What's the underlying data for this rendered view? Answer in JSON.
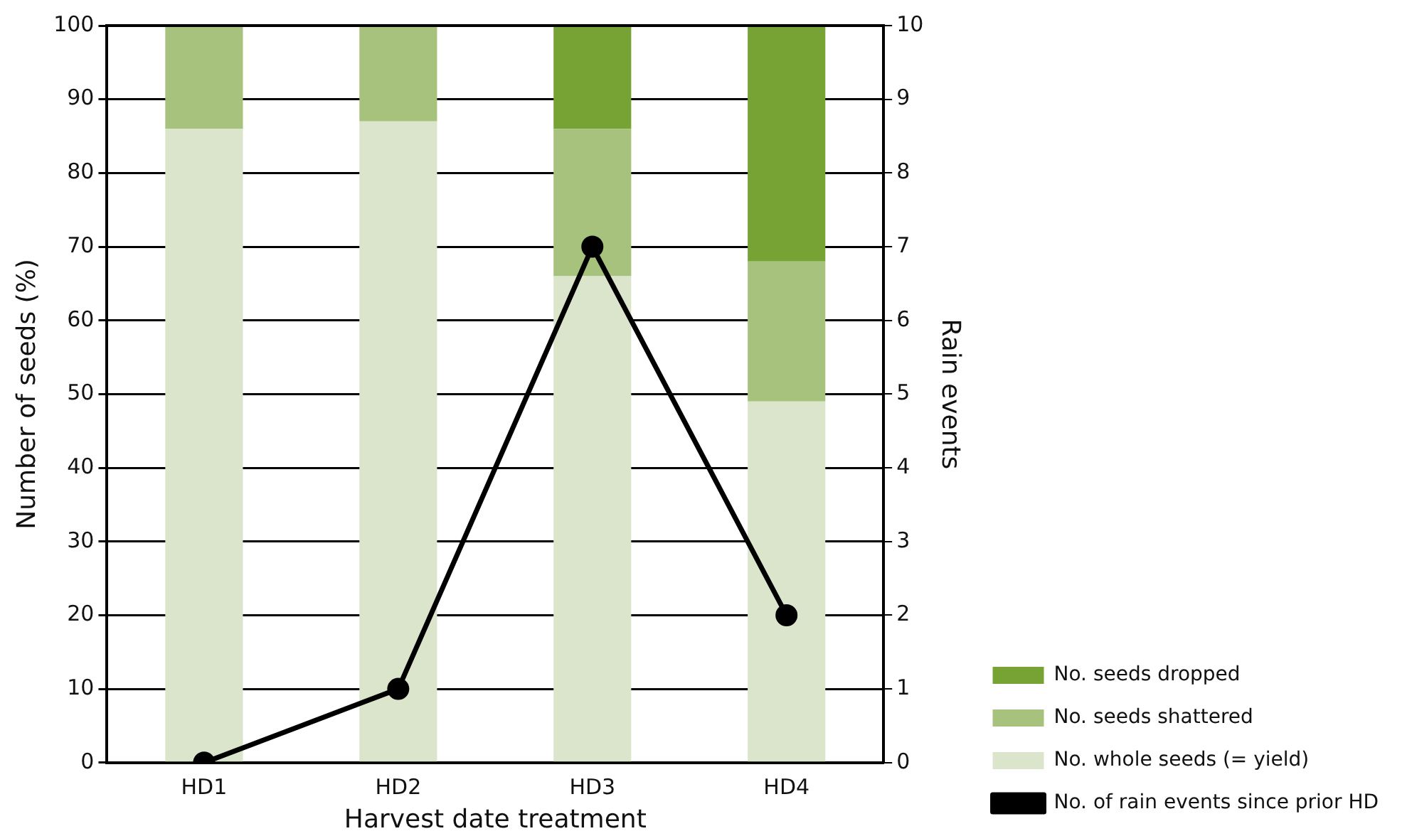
{
  "chart_data": {
    "type": "bar",
    "xlabel": "Harvest date treatment",
    "ylabel": "Number of seeds (%)",
    "y2label": "Rain events",
    "categories": [
      "HD1",
      "HD2",
      "HD3",
      "HD4"
    ],
    "stacked": true,
    "series": [
      {
        "name": "No. whole seeds (= yield)",
        "color": "#dbe5cb",
        "values": [
          86,
          87,
          66,
          49
        ]
      },
      {
        "name": "No. seeds shattered",
        "color": "#a7c27c",
        "values": [
          14,
          13,
          20,
          19
        ]
      },
      {
        "name": "No. seeds dropped",
        "color": "#76a334",
        "values": [
          0,
          0,
          14,
          32
        ]
      },
      {
        "name": "No. of rain events since prior HD",
        "type": "line",
        "axis": "y2",
        "color": "#000000",
        "values": [
          0,
          1,
          7,
          2
        ],
        "marker": "circle",
        "line_style": "solid"
      }
    ],
    "ylim": [
      0,
      100
    ],
    "yticks": [
      0,
      10,
      20,
      30,
      40,
      50,
      60,
      70,
      80,
      90,
      100
    ],
    "y2lim": [
      0,
      10
    ],
    "y2ticks": [
      0,
      1,
      2,
      3,
      4,
      5,
      6,
      7,
      8,
      9,
      10
    ],
    "grid": "y",
    "legend": "right"
  }
}
